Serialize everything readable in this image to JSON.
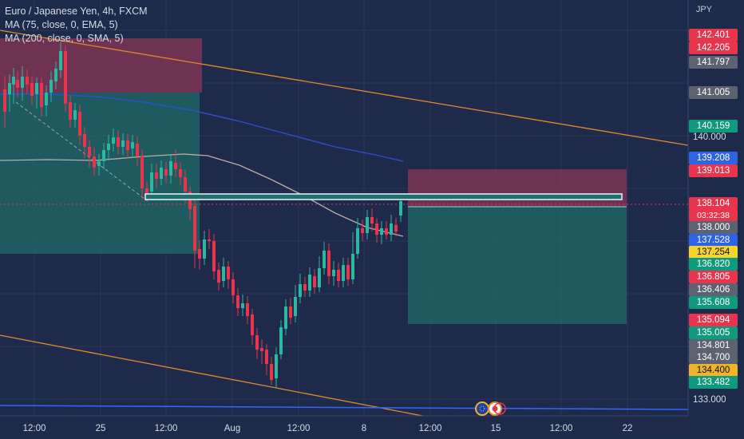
{
  "legend": {
    "title": "Euro / Japanese Yen, 4h, FXCM",
    "ma1": "MA (75, close, 0, EMA, 5)",
    "ma2": "MA (200, close, 0, SMA, 5)"
  },
  "axis": {
    "currency": "JPY",
    "price_ticks": [
      "140.000",
      "133.000"
    ],
    "time_labels": [
      "12:00",
      "25",
      "12:00",
      "Aug",
      "12:00",
      "8",
      "12:00",
      "15",
      "12:00",
      "22"
    ]
  },
  "price_badges": [
    {
      "text": "142.401",
      "color": "#e8344d"
    },
    {
      "text": "142.205",
      "color": "#e8344d"
    },
    {
      "text": "141.797",
      "color": "#5d6270"
    },
    {
      "text": "141.005",
      "color": "#5d6270"
    },
    {
      "text": "140.159",
      "color": "#0f9a7e"
    },
    {
      "text": "139.208",
      "color": "#2f63e6"
    },
    {
      "text": "139.013",
      "color": "#e8344d"
    },
    {
      "text": "138.104",
      "color": "#e8344d"
    },
    {
      "text": "03:32:38",
      "color": "#e8344d"
    },
    {
      "text": "138.000",
      "color": "#5d6270"
    },
    {
      "text": "137.528",
      "color": "#2f63e6"
    },
    {
      "text": "137.254",
      "color": "#f5d42c"
    },
    {
      "text": "136.820",
      "color": "#0f9a7e"
    },
    {
      "text": "136.805",
      "color": "#e8344d"
    },
    {
      "text": "136.406",
      "color": "#5d6270"
    },
    {
      "text": "135.608",
      "color": "#0f9a7e"
    },
    {
      "text": "135.094",
      "color": "#e8344d"
    },
    {
      "text": "135.005",
      "color": "#0f9a7e"
    },
    {
      "text": "134.801",
      "color": "#5d6270"
    },
    {
      "text": "134.700",
      "color": "#5d6270"
    },
    {
      "text": "134.400",
      "color": "#f0b429"
    },
    {
      "text": "133.482",
      "color": "#0f9a7e"
    }
  ],
  "colors": {
    "background": "#1e2a4a",
    "up": "#2bb7a0",
    "down": "#e8344d",
    "ema": "#2f4fd0",
    "sma": "#b8b0a4",
    "trendline": "#e0892a",
    "profit_zone": "#1f6f6a",
    "loss_zone": "#8a3655"
  },
  "events": {
    "icons": [
      "eu-flag-icon",
      "jp-flag-icon"
    ]
  }
}
